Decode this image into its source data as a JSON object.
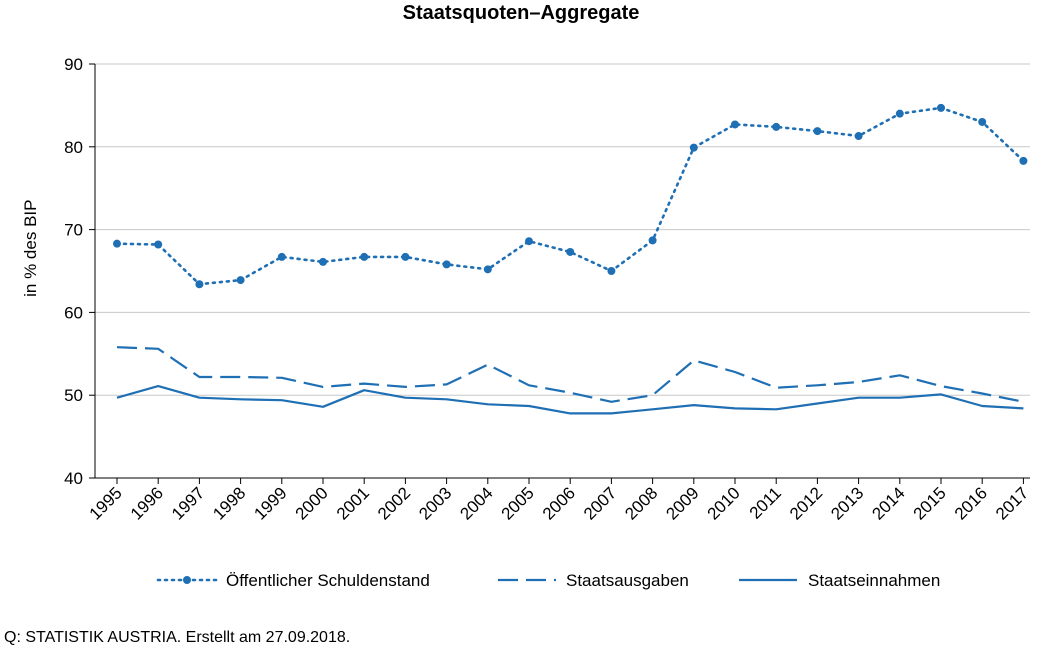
{
  "chart_data": {
    "type": "line",
    "title": "Staatsquoten–Aggregate",
    "ylabel": "in % des BIP",
    "xlabel": "",
    "ylim": [
      40,
      90
    ],
    "yticks": [
      40,
      50,
      60,
      70,
      80,
      90
    ],
    "grid": true,
    "legend_position": "bottom",
    "categories": [
      "1995",
      "1996",
      "1997",
      "1998",
      "1999",
      "2000",
      "2001",
      "2002",
      "2003",
      "2004",
      "2005",
      "2006",
      "2007",
      "2008",
      "2009",
      "2010",
      "2011",
      "2012",
      "2013",
      "2014",
      "2015",
      "2016",
      "2017"
    ],
    "series": [
      {
        "name": "Öffentlicher Schuldenstand",
        "style": "dotted-markers",
        "color": "#1f6fb4",
        "values": [
          68.3,
          68.2,
          63.4,
          63.9,
          66.7,
          66.1,
          66.7,
          66.7,
          65.8,
          65.2,
          68.6,
          67.3,
          65.0,
          68.7,
          79.9,
          82.7,
          82.4,
          81.9,
          81.3,
          84.0,
          84.7,
          83.0,
          78.3
        ]
      },
      {
        "name": "Staatsausgaben",
        "style": "dashed",
        "color": "#1f6fb4",
        "values": [
          55.8,
          55.6,
          52.2,
          52.2,
          52.1,
          51.0,
          51.4,
          51.0,
          51.3,
          53.7,
          51.2,
          50.3,
          49.2,
          50.0,
          54.2,
          52.8,
          50.9,
          51.2,
          51.6,
          52.4,
          51.1,
          50.2,
          49.2
        ]
      },
      {
        "name": "Staatseinnahmen",
        "style": "solid",
        "color": "#1f6fb4",
        "values": [
          49.7,
          51.1,
          49.7,
          49.5,
          49.4,
          48.6,
          50.6,
          49.7,
          49.5,
          48.9,
          48.7,
          47.8,
          47.8,
          48.3,
          48.8,
          48.4,
          48.3,
          49.0,
          49.7,
          49.7,
          50.1,
          48.7,
          48.4
        ]
      }
    ]
  },
  "footer": {
    "source": "Q: STATISTIK AUSTRIA. Erstellt am 27.09.2018."
  }
}
